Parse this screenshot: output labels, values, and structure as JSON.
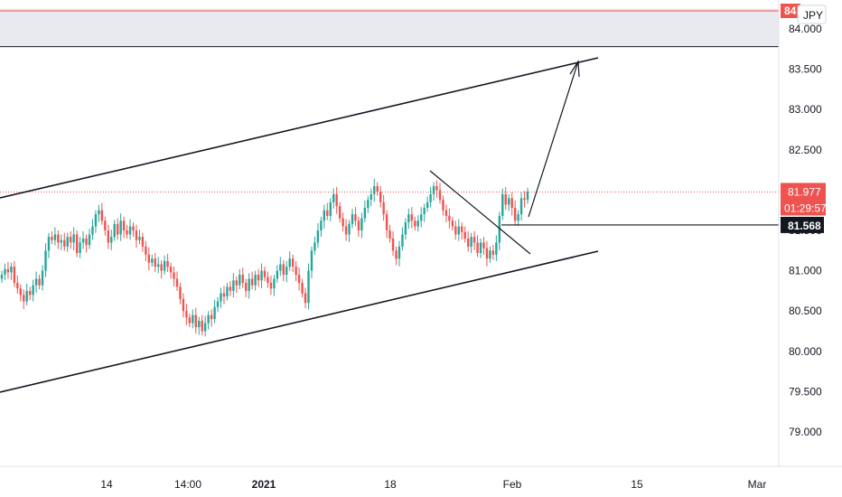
{
  "chart_data": {
    "type": "candlestick",
    "currency_label": "JPY",
    "y_ticks": [
      "84.000",
      "83.500",
      "83.000",
      "82.500",
      "82.000",
      "81.500",
      "81.000",
      "80.500",
      "80.000",
      "79.500",
      "79.000"
    ],
    "y_tick_values": [
      84.0,
      83.5,
      83.0,
      82.5,
      82.0,
      81.5,
      81.0,
      80.5,
      80.0,
      79.5,
      79.0
    ],
    "ylim": [
      78.5,
      84.3
    ],
    "x_ticks": [
      {
        "label": "14",
        "bold": false
      },
      {
        "label": "14:00",
        "bold": false
      },
      {
        "label": "2021",
        "bold": true
      },
      {
        "label": "18",
        "bold": false
      },
      {
        "label": "Feb",
        "bold": false
      },
      {
        "label": "15",
        "bold": false
      },
      {
        "label": "Mar",
        "bold": false
      }
    ],
    "last_price": "81.977",
    "last_price_value": 81.977,
    "countdown": "01:29:57",
    "level_label": "81.568",
    "level_value": 81.568,
    "top_badge": "84",
    "top_zone_bottom_value": 83.78,
    "top_zone_top_value": 84.25,
    "up_color": "#26a69a",
    "down_color": "#ef5350",
    "closes": [
      80.95,
      81.02,
      80.98,
      81.05,
      80.85,
      80.78,
      80.7,
      80.62,
      80.75,
      80.7,
      80.82,
      80.9,
      80.82,
      81.0,
      81.25,
      81.42,
      81.38,
      81.45,
      81.35,
      81.38,
      81.3,
      81.42,
      81.35,
      81.45,
      81.22,
      81.35,
      81.4,
      81.32,
      81.45,
      81.55,
      81.7,
      81.75,
      81.62,
      81.5,
      81.35,
      81.42,
      81.58,
      81.45,
      81.62,
      81.5,
      81.45,
      81.55,
      81.5,
      81.38,
      81.42,
      81.3,
      81.2,
      81.1,
      81.15,
      81.05,
      81.08,
      81.0,
      81.12,
      81.05,
      80.98,
      80.9,
      80.8,
      80.65,
      80.5,
      80.42,
      80.35,
      80.45,
      80.3,
      80.38,
      80.25,
      80.35,
      80.45,
      80.4,
      80.55,
      80.62,
      80.72,
      80.68,
      80.8,
      80.75,
      80.88,
      80.82,
      80.95,
      80.85,
      80.75,
      80.9,
      80.82,
      80.95,
      80.88,
      81.0,
      80.92,
      80.85,
      80.78,
      80.9,
      81.0,
      81.08,
      80.95,
      81.05,
      81.15,
      81.05,
      80.95,
      80.85,
      80.72,
      80.6,
      81.0,
      81.25,
      81.35,
      81.5,
      81.62,
      81.75,
      81.68,
      81.85,
      81.95,
      81.8,
      81.65,
      81.55,
      81.45,
      81.58,
      81.7,
      81.62,
      81.5,
      81.65,
      81.78,
      81.88,
      81.95,
      82.05,
      81.98,
      81.85,
      81.7,
      81.5,
      81.4,
      81.25,
      81.15,
      81.3,
      81.45,
      81.6,
      81.7,
      81.62,
      81.55,
      81.62,
      81.7,
      81.78,
      81.85,
      81.95,
      82.05,
      82.0,
      81.88,
      81.75,
      81.68,
      81.62,
      81.55,
      81.45,
      81.55,
      81.48,
      81.4,
      81.3,
      81.42,
      81.35,
      81.22,
      81.35,
      81.28,
      81.15,
      81.25,
      81.2,
      81.35,
      81.68,
      81.95,
      81.82,
      81.9,
      81.78,
      81.62,
      81.7,
      81.9,
      81.88,
      81.98
    ]
  }
}
